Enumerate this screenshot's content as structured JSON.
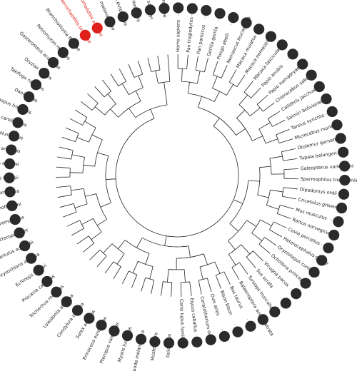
{
  "tree": {
    "leaves": [
      {
        "name": "Homo sapiens"
      },
      {
        "name": "Pan troglodytes"
      },
      {
        "name": "Pan paniscus"
      },
      {
        "name": "Gorilla gorilla"
      },
      {
        "name": "Pongo abelii"
      },
      {
        "name": "Nomascus leucogenys"
      },
      {
        "name": "Macaca mulatta"
      },
      {
        "name": "Macaca nemestrina"
      },
      {
        "name": "Macaca fascicularis"
      },
      {
        "name": "Papio anubis"
      },
      {
        "name": "Papio hamadryas"
      },
      {
        "name": "Chlorocebus sabaeus"
      },
      {
        "name": "Callithrix jacchus"
      },
      {
        "name": "Saimiri boliviensis"
      },
      {
        "name": "Tarsius syrichta"
      },
      {
        "name": "Microcebus murinus"
      },
      {
        "name": "Otolemur garnettii"
      },
      {
        "name": "Tupaia belangeri"
      },
      {
        "name": "Galeopterus variegatus"
      },
      {
        "name": "Spermophilus tridecemlineatus"
      },
      {
        "name": "Dipodomys ordii"
      },
      {
        "name": "Cricetulus griseus"
      },
      {
        "name": "Mus musculus"
      },
      {
        "name": "Rattus norvegicus"
      },
      {
        "name": "Cavia porcellus"
      },
      {
        "name": "Heterocephalus glaber"
      },
      {
        "name": "Oryctolagus cuniculus"
      },
      {
        "name": "Ochotona princeps"
      },
      {
        "name": "Vicugna pacos"
      },
      {
        "name": "Sus scrofa"
      },
      {
        "name": "Tursiops truncatus"
      },
      {
        "name": "Balaenoptera acutorostrata"
      },
      {
        "name": "Bos taurus"
      },
      {
        "name": "Bison bison"
      },
      {
        "name": "Ovis aries"
      },
      {
        "name": "Ceratotherium simum"
      },
      {
        "name": "Equus caballus"
      },
      {
        "name": "Canis lupus familiaris"
      },
      {
        "name": "Felis catus"
      },
      {
        "name": "Mustela furo"
      },
      {
        "name": "Ailuropoda melanoleuca"
      },
      {
        "name": "Myotis lucifugus"
      },
      {
        "name": "Pteropus vampyrus"
      },
      {
        "name": "Erinaceus europaeus"
      },
      {
        "name": "Sorex araneus"
      },
      {
        "name": "Condylura cristata"
      },
      {
        "name": "Loxodonta africana"
      },
      {
        "name": "Trichechus manatus"
      },
      {
        "name": "Procavia capensis"
      },
      {
        "name": "Echinops telfairi"
      },
      {
        "name": "Chrysochloris asiatica"
      },
      {
        "name": "Elephantulus edwardii"
      },
      {
        "name": "Orycteropus afer"
      },
      {
        "name": "Dasypus novemcinctus"
      },
      {
        "name": "Choloepus hoffmanni"
      },
      {
        "name": "Monodelphis domestica"
      },
      {
        "name": "Sarcophilus harrisii"
      },
      {
        "name": "Macropus eugenii"
      },
      {
        "name": "Ornithorhynchus anatinus"
      },
      {
        "name": "Gallus gallus"
      },
      {
        "name": "Anolis carolinensis"
      },
      {
        "name": "Xenopus tropicalis"
      },
      {
        "name": "Danio rerio"
      },
      {
        "name": "Takifugu rubripes"
      },
      {
        "name": "Oryzias latipes"
      },
      {
        "name": "Gasterosteus aculeatus"
      },
      {
        "name": "Petromyzon marinus"
      },
      {
        "name": "Branchiostoma floridae"
      },
      {
        "name": "Caenorhabditis briggsae",
        "highlight": true
      },
      {
        "name": "Caenorhabditis elegans",
        "highlight": true
      },
      {
        "name": "Drosophila melanogaster"
      },
      {
        "name": "Strongylocentrotus purpuratus"
      },
      {
        "name": "Ciona intestinalis"
      },
      {
        "name": "Ciona savignyi"
      },
      {
        "name": "Saccharomyces cerevisiae"
      }
    ]
  },
  "colors": {
    "default_label": "#222222",
    "highlight": "#e0201b",
    "marker": "#2b2b2b"
  }
}
